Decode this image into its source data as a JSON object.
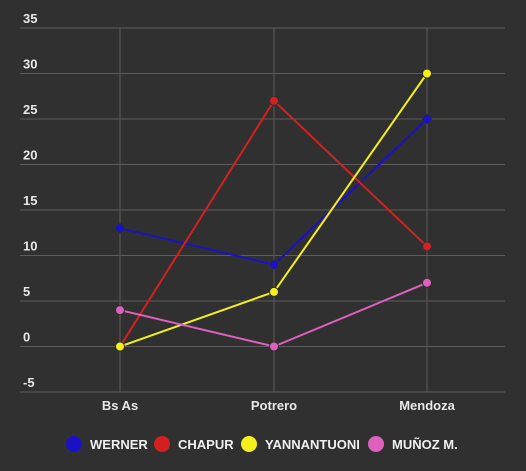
{
  "chart_data": {
    "type": "line",
    "categories": [
      "Bs As",
      "Potrero",
      "Mendoza"
    ],
    "ylim": [
      -5,
      35
    ],
    "yticks": [
      -5,
      0,
      5,
      10,
      15,
      20,
      25,
      30,
      35
    ],
    "grid": true,
    "legend_position": "bottom",
    "series": [
      {
        "name": "WERNER",
        "color": "#1a10c8",
        "values": [
          13,
          9,
          25
        ]
      },
      {
        "name": "CHAPUR",
        "color": "#d42020",
        "values": [
          0,
          27,
          11
        ]
      },
      {
        "name": "YANNANTUONI",
        "color": "#f5f01c",
        "values": [
          0,
          6,
          30
        ]
      },
      {
        "name": "MUÑOZ M.",
        "color": "#e060c0",
        "values": [
          4,
          0,
          7
        ]
      }
    ]
  },
  "colors": {
    "background": "#303030",
    "grid": "#5c5c5c",
    "text": "#e8e8e8"
  }
}
